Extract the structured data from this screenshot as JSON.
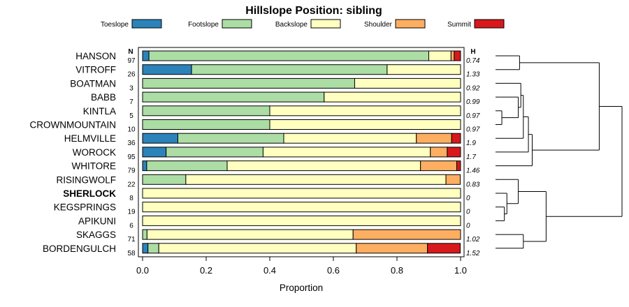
{
  "chart_data": {
    "type": "bar",
    "orientation": "horizontal",
    "stacked": true,
    "title": "Hillslope Position: sibling",
    "xlabel": "Proportion",
    "xlim": [
      0,
      1
    ],
    "xticks": [
      "0.0",
      "0.2",
      "0.4",
      "0.6",
      "0.8",
      "1.0"
    ],
    "n_header": "N",
    "h_header": "H",
    "legend": [
      {
        "name": "Toeslope",
        "color": "#2b83ba"
      },
      {
        "name": "Footslope",
        "color": "#abdda4"
      },
      {
        "name": "Backslope",
        "color": "#ffffbf"
      },
      {
        "name": "Shoulder",
        "color": "#fdae61"
      },
      {
        "name": "Summit",
        "color": "#d7191c"
      }
    ],
    "rows": [
      {
        "name": "HANSON",
        "n": "97",
        "h": "0.74",
        "bold": false,
        "values": [
          0.02,
          0.88,
          0.07,
          0.01,
          0.02
        ]
      },
      {
        "name": "VITROFF",
        "n": "26",
        "h": "1.33",
        "bold": false,
        "values": [
          0.154,
          0.615,
          0.231,
          0,
          0
        ]
      },
      {
        "name": "BOATMAN",
        "n": "3",
        "h": "0.92",
        "bold": false,
        "values": [
          0,
          0.667,
          0.333,
          0,
          0
        ]
      },
      {
        "name": "BABB",
        "n": "7",
        "h": "0.99",
        "bold": false,
        "values": [
          0,
          0.571,
          0.429,
          0,
          0
        ]
      },
      {
        "name": "KINTLA",
        "n": "5",
        "h": "0.97",
        "bold": false,
        "values": [
          0,
          0.4,
          0.6,
          0,
          0
        ]
      },
      {
        "name": "CROWNMOUNTAIN",
        "n": "10",
        "h": "0.97",
        "bold": false,
        "values": [
          0,
          0.4,
          0.6,
          0,
          0
        ]
      },
      {
        "name": "HELMVILLE",
        "n": "36",
        "h": "1.9",
        "bold": false,
        "values": [
          0.111,
          0.333,
          0.417,
          0.111,
          0.028
        ]
      },
      {
        "name": "WOROCK",
        "n": "95",
        "h": "1.7",
        "bold": false,
        "values": [
          0.074,
          0.305,
          0.526,
          0.053,
          0.042
        ]
      },
      {
        "name": "WHITORE",
        "n": "79",
        "h": "1.46",
        "bold": false,
        "values": [
          0.013,
          0.253,
          0.608,
          0.114,
          0.013
        ]
      },
      {
        "name": "RISINGWOLF",
        "n": "22",
        "h": "0.83",
        "bold": false,
        "values": [
          0,
          0.136,
          0.818,
          0.045,
          0
        ]
      },
      {
        "name": "SHERLOCK",
        "n": "8",
        "h": "0",
        "bold": true,
        "values": [
          0,
          0,
          1,
          0,
          0
        ]
      },
      {
        "name": "KEGSPRINGS",
        "n": "19",
        "h": "0",
        "bold": false,
        "values": [
          0,
          0,
          1,
          0,
          0
        ]
      },
      {
        "name": "APIKUNI",
        "n": "6",
        "h": "0",
        "bold": false,
        "values": [
          0,
          0,
          1,
          0,
          0
        ]
      },
      {
        "name": "SKAGGS",
        "n": "71",
        "h": "1.02",
        "bold": false,
        "values": [
          0,
          0.014,
          0.648,
          0.338,
          0
        ]
      },
      {
        "name": "BORDENGULCH",
        "n": "58",
        "h": "1.52",
        "bold": false,
        "values": [
          0.017,
          0.034,
          0.621,
          0.224,
          0.103
        ]
      }
    ],
    "dendrogram": {
      "note": "cluster tree over the 15 rows; leaves referenced by row index, height in relative units (0-1)",
      "merges": [
        {
          "a": "r1",
          "b": "r0",
          "height": 0.19
        },
        {
          "a": "r4",
          "b": "r5",
          "height": 0.05
        },
        {
          "a": "r3",
          "b": "m1",
          "height": 0.18
        },
        {
          "a": "r2",
          "b": "m2",
          "height": 0.2
        },
        {
          "a": "m3",
          "b": "r6",
          "height": 0.22
        },
        {
          "a": "m4",
          "b": "r7",
          "height": 0.26
        },
        {
          "a": "m5",
          "b": "r8",
          "height": 0.29
        },
        {
          "a": "r11",
          "b": "r12",
          "height": 0.07
        },
        {
          "a": "r10",
          "b": "m7",
          "height": 0.09
        },
        {
          "a": "r9",
          "b": "m8",
          "height": 0.18
        },
        {
          "a": "r13",
          "b": "r14",
          "height": 0.22
        },
        {
          "a": "m9",
          "b": "m10",
          "height": 0.4
        },
        {
          "a": "m0",
          "b": "m6",
          "height": 0.82
        },
        {
          "a": "m12",
          "b": "m11",
          "height": 1.0
        }
      ]
    }
  }
}
